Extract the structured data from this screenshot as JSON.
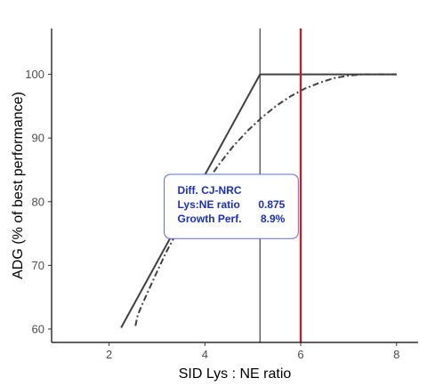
{
  "chart_data": {
    "type": "line",
    "xlabel": "SID Lys : NE ratio",
    "ylabel": "ADG (% of best performance)",
    "xlim": [
      0.8,
      8.45
    ],
    "ylim": [
      57.9,
      107.2
    ],
    "x_ticks": [
      2,
      4,
      6,
      8
    ],
    "y_ticks": [
      60,
      70,
      80,
      90,
      100
    ],
    "grid": false,
    "series": [
      {
        "style": "solid",
        "color": "#404040",
        "points": [
          [
            2.25,
            60.2
          ],
          [
            5.15,
            100
          ],
          [
            8.0,
            100
          ]
        ]
      },
      {
        "style": "dashdot",
        "color": "#404040",
        "points": [
          [
            2.55,
            60.5
          ],
          [
            2.6,
            62.2
          ],
          [
            2.7,
            64.0
          ],
          [
            2.85,
            66.5
          ],
          [
            3.0,
            69.0
          ],
          [
            3.2,
            72.2
          ],
          [
            3.4,
            75.0
          ],
          [
            3.6,
            77.8
          ],
          [
            3.8,
            80.3
          ],
          [
            4.0,
            82.7
          ],
          [
            4.3,
            85.9
          ],
          [
            4.6,
            88.8
          ],
          [
            4.9,
            91.2
          ],
          [
            5.2,
            93.3
          ],
          [
            5.5,
            95.1
          ],
          [
            5.8,
            96.6
          ],
          [
            6.1,
            97.8
          ],
          [
            6.4,
            98.7
          ],
          [
            6.7,
            99.4
          ],
          [
            7.0,
            99.8
          ],
          [
            7.3,
            100.0
          ],
          [
            8.0,
            100.0
          ]
        ]
      }
    ],
    "vlines": [
      {
        "x": 5.15,
        "color": "#404040",
        "width": 1.2
      },
      {
        "x": 6.0,
        "color": "#e0101a",
        "width": 2.2
      }
    ],
    "annotation": {
      "title": "Diff. CJ-NRC",
      "rows": [
        {
          "label": "Lys:NE ratio",
          "value": "0.875"
        },
        {
          "label": "Growth Perf.",
          "value": "8.9%"
        }
      ],
      "text_color": "#1a2fbf",
      "border_color": "#5a6fe0",
      "anchor_x": 3.15,
      "anchor_y": 84.3,
      "anchor_x2": 5.95,
      "anchor_y2": 74.2
    }
  }
}
